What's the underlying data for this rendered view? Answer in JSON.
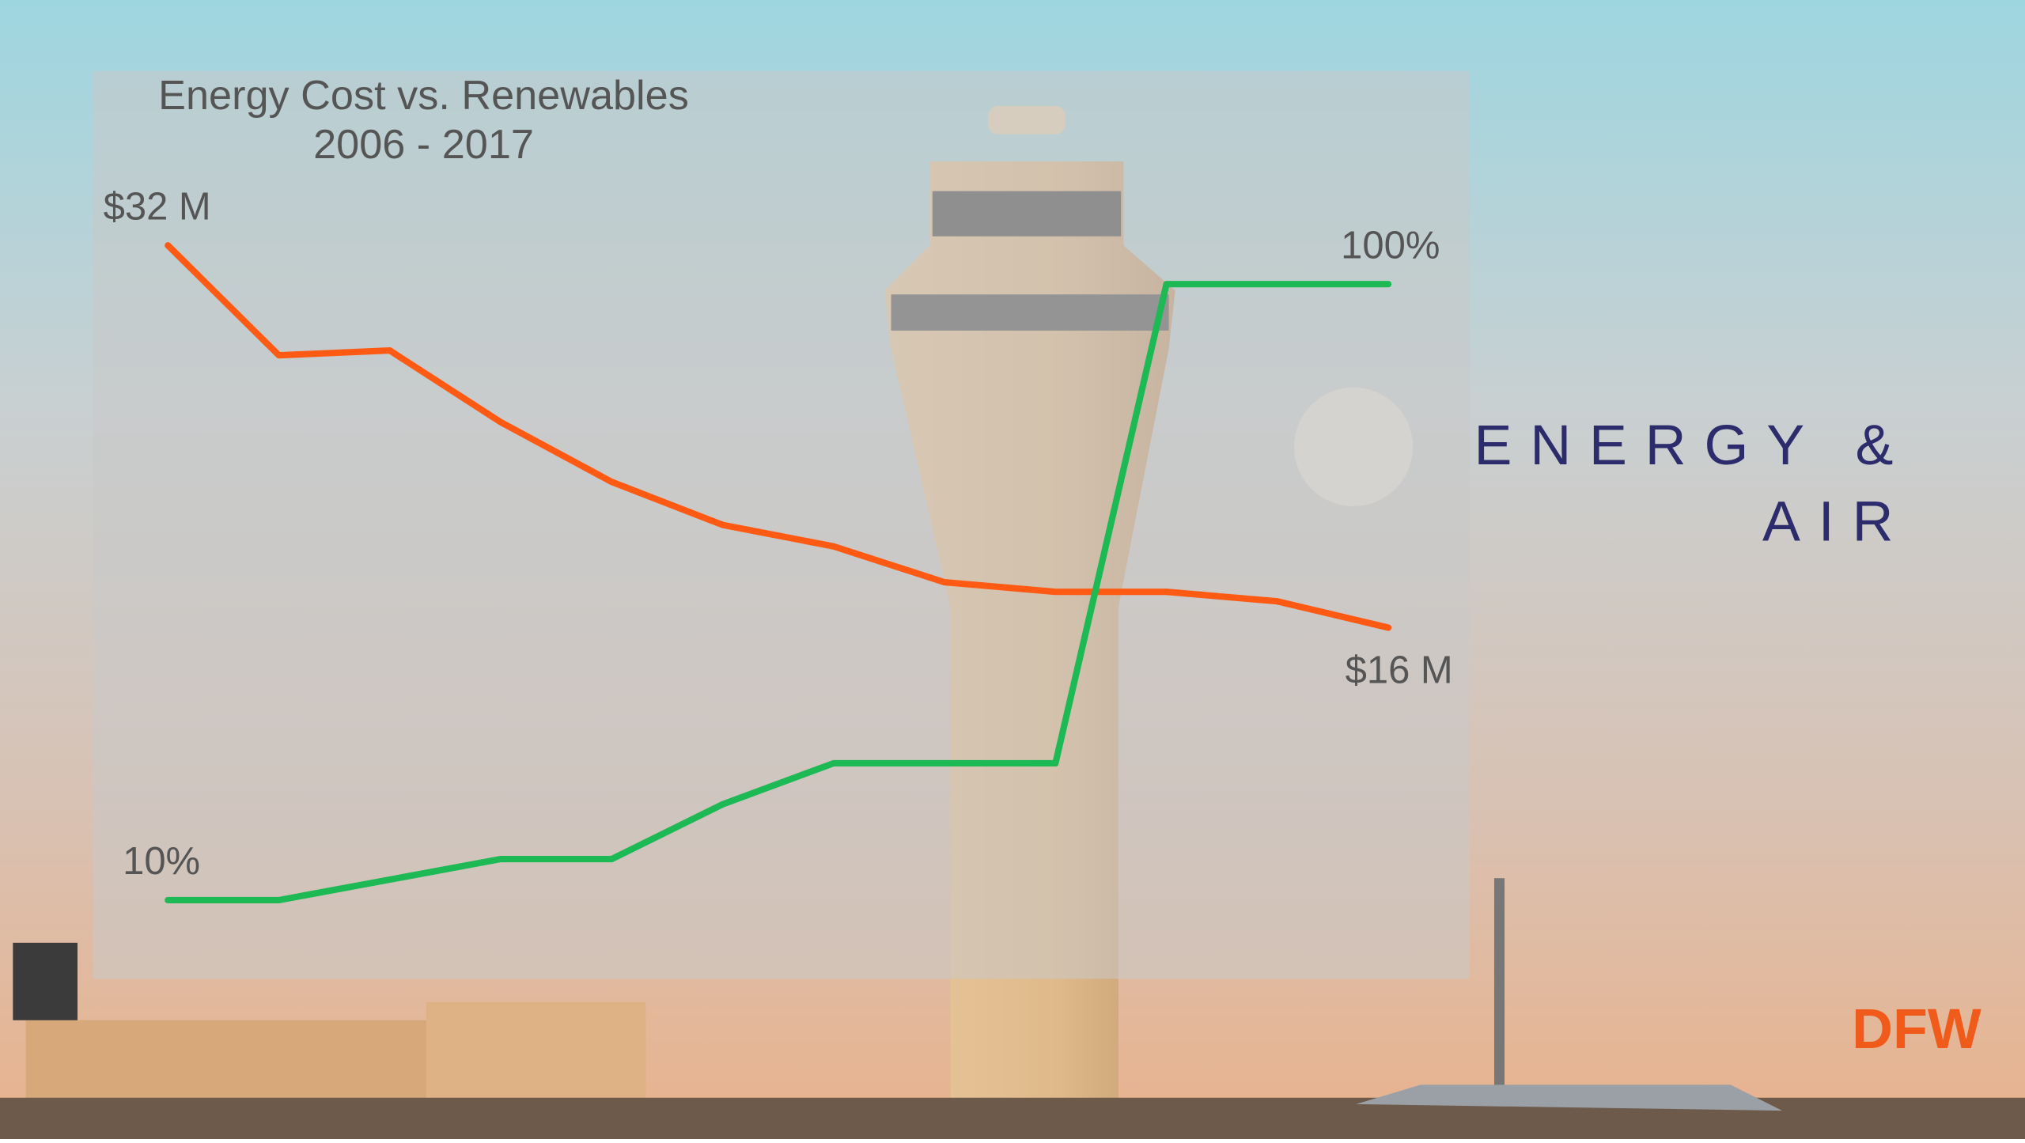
{
  "chart_data": {
    "type": "line",
    "title": "Energy Cost vs. Renewables",
    "subtitle": "2006 - 2017",
    "categories": [
      null,
      null,
      null,
      null,
      null,
      null,
      null,
      null,
      null,
      null,
      null,
      null
    ],
    "series": [
      {
        "color": "#ff5a14",
        "values": [
          32,
          27.4,
          27.6,
          24.6,
          22.1,
          20.3,
          19.4,
          17.9,
          17.5,
          17.5,
          17.1,
          16
        ],
        "value_labels": [
          "$32 M",
          null,
          null,
          null,
          null,
          null,
          null,
          null,
          null,
          null,
          null,
          "$16 M"
        ]
      },
      {
        "color": "#1db954",
        "values": [
          10,
          10,
          13,
          16,
          16,
          24,
          30,
          30,
          30,
          100,
          100,
          100
        ],
        "value_labels": [
          "10%",
          null,
          null,
          null,
          null,
          null,
          null,
          null,
          null,
          null,
          null,
          "100%"
        ]
      }
    ]
  },
  "heading": [
    "ENERGY &",
    "AIR"
  ],
  "logo": "DFW"
}
